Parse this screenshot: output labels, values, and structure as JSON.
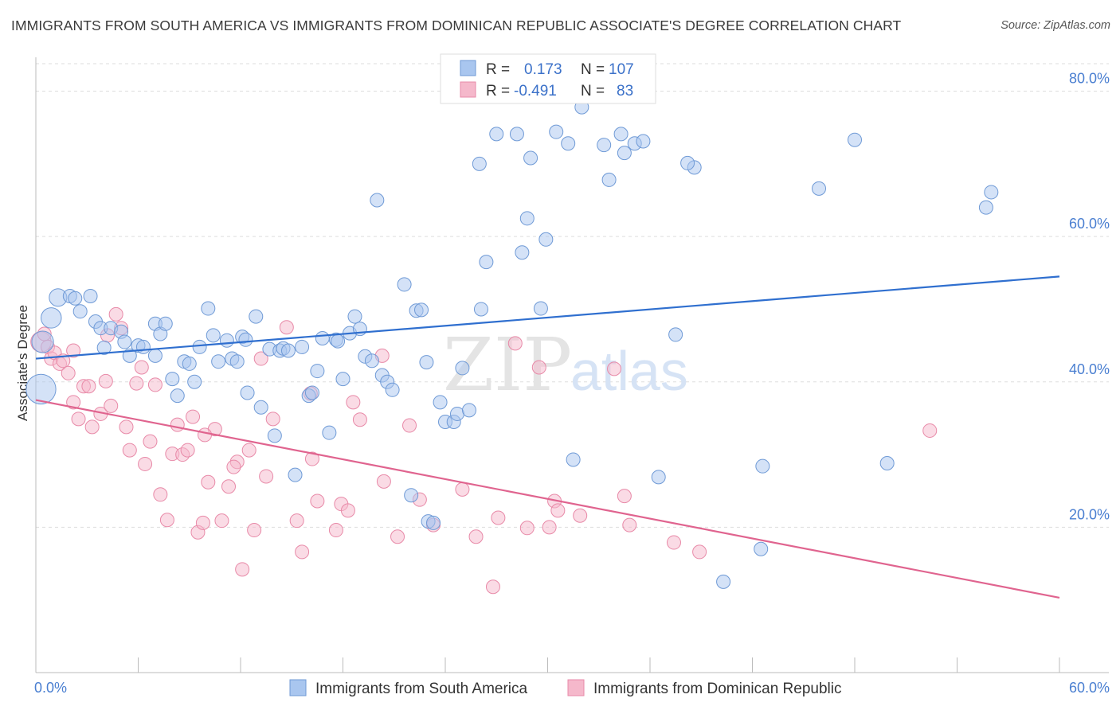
{
  "title": "IMMIGRANTS FROM SOUTH AMERICA VS IMMIGRANTS FROM DOMINICAN REPUBLIC ASSOCIATE'S DEGREE CORRELATION CHART",
  "source": "Source: ZipAtlas.com",
  "watermark": {
    "zip": "ZIP",
    "atlas": "atlas"
  },
  "legend_top": {
    "rows": [
      {
        "r_label": "R =",
        "r_value": "0.173",
        "n_label": "N =",
        "n_value": "107"
      },
      {
        "r_label": "R =",
        "r_value": "-0.491",
        "n_label": "N =",
        "n_value": "83"
      }
    ]
  },
  "legend_bottom": [
    {
      "label": "Immigrants from South America"
    },
    {
      "label": "Immigrants from Dominican Republic"
    }
  ],
  "colors": {
    "blue_fill": "#a9c6ef",
    "blue_stroke": "#6f9ad6",
    "blue_line": "#2f6fcf",
    "pink_fill": "#f5b8cb",
    "pink_stroke": "#e88aa8",
    "pink_line": "#e0648f",
    "grid": "#dddddd",
    "tick_text": "#4a7fd1"
  },
  "chart_data": {
    "type": "scatter",
    "title": "IMMIGRANTS FROM SOUTH AMERICA VS IMMIGRANTS FROM DOMINICAN REPUBLIC ASSOCIATE'S DEGREE CORRELATION CHART",
    "xlabel": "",
    "ylabel": "Associate's Degree",
    "xlim": [
      0,
      60
    ],
    "ylim": [
      0,
      84
    ],
    "x_tick_labels": [
      "0.0%",
      "60.0%"
    ],
    "y_ticks": [
      {
        "value": 20,
        "label": "20.0%"
      },
      {
        "value": 40,
        "label": "40.0%"
      },
      {
        "value": 60,
        "label": "60.0%"
      },
      {
        "value": 80,
        "label": "80.0%"
      }
    ],
    "grid": true,
    "legend_position": "top-center",
    "series": [
      {
        "name": "Immigrants from South America",
        "color": "#a9c6ef",
        "r": 0.173,
        "n": 107,
        "trend": {
          "x": [
            0,
            60
          ],
          "y": [
            43.2,
            54.5
          ]
        },
        "points": [
          {
            "x": 0.3,
            "y": 39.0,
            "s": 2.2
          },
          {
            "x": 0.4,
            "y": 45.5,
            "s": 1.6
          },
          {
            "x": 0.9,
            "y": 48.8,
            "s": 1.5
          },
          {
            "x": 1.3,
            "y": 51.6,
            "s": 1.3
          },
          {
            "x": 2.0,
            "y": 51.8
          },
          {
            "x": 2.3,
            "y": 51.5
          },
          {
            "x": 3.2,
            "y": 51.8
          },
          {
            "x": 2.6,
            "y": 49.7
          },
          {
            "x": 3.5,
            "y": 48.3
          },
          {
            "x": 3.8,
            "y": 47.4
          },
          {
            "x": 4.4,
            "y": 47.4
          },
          {
            "x": 5.0,
            "y": 46.9
          },
          {
            "x": 4.0,
            "y": 44.7
          },
          {
            "x": 5.2,
            "y": 45.5
          },
          {
            "x": 5.5,
            "y": 43.6
          },
          {
            "x": 6.0,
            "y": 45.0
          },
          {
            "x": 6.3,
            "y": 44.8
          },
          {
            "x": 7.0,
            "y": 48.0
          },
          {
            "x": 7.3,
            "y": 46.6
          },
          {
            "x": 7.6,
            "y": 48.0
          },
          {
            "x": 7.0,
            "y": 43.6
          },
          {
            "x": 8.0,
            "y": 40.4
          },
          {
            "x": 8.3,
            "y": 38.1
          },
          {
            "x": 8.7,
            "y": 42.8
          },
          {
            "x": 9.0,
            "y": 42.5
          },
          {
            "x": 9.3,
            "y": 40.0
          },
          {
            "x": 9.6,
            "y": 44.8
          },
          {
            "x": 10.1,
            "y": 50.1
          },
          {
            "x": 10.4,
            "y": 46.4
          },
          {
            "x": 10.7,
            "y": 42.8
          },
          {
            "x": 11.2,
            "y": 45.7
          },
          {
            "x": 11.5,
            "y": 43.2
          },
          {
            "x": 11.8,
            "y": 42.8
          },
          {
            "x": 12.1,
            "y": 46.2
          },
          {
            "x": 12.4,
            "y": 38.5
          },
          {
            "x": 12.9,
            "y": 49.0
          },
          {
            "x": 13.2,
            "y": 36.5
          },
          {
            "x": 13.7,
            "y": 44.5
          },
          {
            "x": 14.0,
            "y": 32.6
          },
          {
            "x": 14.3,
            "y": 44.3
          },
          {
            "x": 14.5,
            "y": 44.6
          },
          {
            "x": 14.8,
            "y": 44.3
          },
          {
            "x": 15.2,
            "y": 27.2
          },
          {
            "x": 15.6,
            "y": 44.8
          },
          {
            "x": 16.0,
            "y": 38.1
          },
          {
            "x": 16.2,
            "y": 38.5
          },
          {
            "x": 16.5,
            "y": 41.5
          },
          {
            "x": 16.8,
            "y": 46.0
          },
          {
            "x": 17.2,
            "y": 33.0
          },
          {
            "x": 17.6,
            "y": 45.8
          },
          {
            "x": 18.0,
            "y": 40.4
          },
          {
            "x": 18.4,
            "y": 46.7
          },
          {
            "x": 18.7,
            "y": 49.0
          },
          {
            "x": 19.0,
            "y": 47.3
          },
          {
            "x": 19.3,
            "y": 43.5
          },
          {
            "x": 19.7,
            "y": 42.9
          },
          {
            "x": 20.3,
            "y": 40.9
          },
          {
            "x": 20.6,
            "y": 40.0
          },
          {
            "x": 20.9,
            "y": 38.9
          },
          {
            "x": 21.6,
            "y": 53.4
          },
          {
            "x": 22.3,
            "y": 49.8
          },
          {
            "x": 22.6,
            "y": 49.9
          },
          {
            "x": 23.0,
            "y": 20.8
          },
          {
            "x": 22.0,
            "y": 24.4
          },
          {
            "x": 23.3,
            "y": 20.6
          },
          {
            "x": 22.9,
            "y": 42.7
          },
          {
            "x": 23.7,
            "y": 37.2
          },
          {
            "x": 24.0,
            "y": 34.5
          },
          {
            "x": 24.5,
            "y": 34.5
          },
          {
            "x": 24.7,
            "y": 35.6
          },
          {
            "x": 25.0,
            "y": 41.9
          },
          {
            "x": 25.4,
            "y": 36.1
          },
          {
            "x": 26.1,
            "y": 50.0
          },
          {
            "x": 26.4,
            "y": 56.5
          },
          {
            "x": 26.0,
            "y": 70.0
          },
          {
            "x": 20.0,
            "y": 65.0
          },
          {
            "x": 27.0,
            "y": 74.1
          },
          {
            "x": 28.2,
            "y": 74.1
          },
          {
            "x": 28.5,
            "y": 57.8
          },
          {
            "x": 28.8,
            "y": 62.5
          },
          {
            "x": 29.0,
            "y": 70.8
          },
          {
            "x": 29.6,
            "y": 50.1
          },
          {
            "x": 29.9,
            "y": 59.6
          },
          {
            "x": 30.5,
            "y": 74.4
          },
          {
            "x": 31.2,
            "y": 72.8
          },
          {
            "x": 32.0,
            "y": 77.8
          },
          {
            "x": 33.3,
            "y": 72.6
          },
          {
            "x": 33.6,
            "y": 67.8
          },
          {
            "x": 34.3,
            "y": 74.1
          },
          {
            "x": 34.5,
            "y": 71.5
          },
          {
            "x": 35.1,
            "y": 72.8
          },
          {
            "x": 35.6,
            "y": 73.1
          },
          {
            "x": 31.5,
            "y": 29.3
          },
          {
            "x": 36.5,
            "y": 26.9
          },
          {
            "x": 37.5,
            "y": 46.5
          },
          {
            "x": 38.6,
            "y": 69.5
          },
          {
            "x": 42.5,
            "y": 17.0
          },
          {
            "x": 42.6,
            "y": 28.4
          },
          {
            "x": 45.9,
            "y": 66.6
          },
          {
            "x": 48.0,
            "y": 73.3
          },
          {
            "x": 49.9,
            "y": 28.8
          },
          {
            "x": 55.7,
            "y": 64.0
          },
          {
            "x": 56.0,
            "y": 66.1
          },
          {
            "x": 38.2,
            "y": 70.1
          },
          {
            "x": 40.3,
            "y": 12.5
          },
          {
            "x": 17.7,
            "y": 45.6
          },
          {
            "x": 12.3,
            "y": 45.8
          }
        ]
      },
      {
        "name": "Immigrants from Dominican Republic",
        "color": "#f5b8cb",
        "r": -0.491,
        "n": 83,
        "trend": {
          "x": [
            0,
            60
          ],
          "y": [
            37.5,
            10.3
          ]
        },
        "points": [
          {
            "x": 0.3,
            "y": 45.5,
            "s": 1.5
          },
          {
            "x": 0.5,
            "y": 46.6
          },
          {
            "x": 0.7,
            "y": 44.8
          },
          {
            "x": 0.9,
            "y": 43.2
          },
          {
            "x": 1.1,
            "y": 44.0
          },
          {
            "x": 1.4,
            "y": 42.5
          },
          {
            "x": 1.6,
            "y": 42.9
          },
          {
            "x": 1.9,
            "y": 41.2
          },
          {
            "x": 2.2,
            "y": 37.2
          },
          {
            "x": 2.5,
            "y": 34.9
          },
          {
            "x": 2.8,
            "y": 39.4
          },
          {
            "x": 3.1,
            "y": 39.4
          },
          {
            "x": 3.3,
            "y": 33.8
          },
          {
            "x": 3.8,
            "y": 35.6
          },
          {
            "x": 4.1,
            "y": 40.1
          },
          {
            "x": 4.4,
            "y": 36.7
          },
          {
            "x": 4.7,
            "y": 49.3
          },
          {
            "x": 5.0,
            "y": 47.4
          },
          {
            "x": 5.3,
            "y": 33.8
          },
          {
            "x": 5.5,
            "y": 30.6
          },
          {
            "x": 5.9,
            "y": 39.8
          },
          {
            "x": 6.2,
            "y": 42.0
          },
          {
            "x": 6.4,
            "y": 28.7
          },
          {
            "x": 6.7,
            "y": 31.8
          },
          {
            "x": 7.0,
            "y": 39.6
          },
          {
            "x": 7.3,
            "y": 24.5
          },
          {
            "x": 7.7,
            "y": 21.0
          },
          {
            "x": 8.0,
            "y": 30.1
          },
          {
            "x": 8.3,
            "y": 34.1
          },
          {
            "x": 8.6,
            "y": 30.0
          },
          {
            "x": 8.9,
            "y": 30.6
          },
          {
            "x": 9.2,
            "y": 35.2
          },
          {
            "x": 9.5,
            "y": 19.3
          },
          {
            "x": 9.8,
            "y": 20.6
          },
          {
            "x": 10.1,
            "y": 26.2
          },
          {
            "x": 10.5,
            "y": 33.5
          },
          {
            "x": 10.9,
            "y": 20.9
          },
          {
            "x": 11.3,
            "y": 25.6
          },
          {
            "x": 11.8,
            "y": 29.0
          },
          {
            "x": 11.6,
            "y": 28.3
          },
          {
            "x": 12.1,
            "y": 14.2
          },
          {
            "x": 12.5,
            "y": 30.6
          },
          {
            "x": 12.8,
            "y": 19.6
          },
          {
            "x": 13.2,
            "y": 43.2
          },
          {
            "x": 13.5,
            "y": 27.0
          },
          {
            "x": 13.9,
            "y": 34.9
          },
          {
            "x": 14.7,
            "y": 47.5
          },
          {
            "x": 15.3,
            "y": 20.9
          },
          {
            "x": 15.6,
            "y": 16.6
          },
          {
            "x": 16.2,
            "y": 29.4
          },
          {
            "x": 16.5,
            "y": 23.6
          },
          {
            "x": 17.6,
            "y": 19.6
          },
          {
            "x": 17.9,
            "y": 23.2
          },
          {
            "x": 18.3,
            "y": 22.3
          },
          {
            "x": 18.6,
            "y": 37.2
          },
          {
            "x": 19.0,
            "y": 34.8
          },
          {
            "x": 20.4,
            "y": 26.3
          },
          {
            "x": 20.3,
            "y": 43.6
          },
          {
            "x": 21.2,
            "y": 18.7
          },
          {
            "x": 21.9,
            "y": 34.0
          },
          {
            "x": 22.5,
            "y": 23.8
          },
          {
            "x": 23.3,
            "y": 20.3
          },
          {
            "x": 25.0,
            "y": 25.2
          },
          {
            "x": 25.8,
            "y": 18.7
          },
          {
            "x": 26.8,
            "y": 11.8
          },
          {
            "x": 27.1,
            "y": 21.3
          },
          {
            "x": 28.1,
            "y": 45.3
          },
          {
            "x": 28.8,
            "y": 19.9
          },
          {
            "x": 29.5,
            "y": 42.0
          },
          {
            "x": 30.1,
            "y": 20.0
          },
          {
            "x": 30.4,
            "y": 23.6
          },
          {
            "x": 30.6,
            "y": 22.3
          },
          {
            "x": 31.9,
            "y": 21.6
          },
          {
            "x": 33.9,
            "y": 41.8
          },
          {
            "x": 34.5,
            "y": 24.3
          },
          {
            "x": 34.8,
            "y": 20.3
          },
          {
            "x": 37.4,
            "y": 17.9
          },
          {
            "x": 38.9,
            "y": 16.6
          },
          {
            "x": 52.4,
            "y": 33.3
          },
          {
            "x": 2.2,
            "y": 44.3
          },
          {
            "x": 9.9,
            "y": 32.7
          },
          {
            "x": 4.2,
            "y": 46.4
          },
          {
            "x": 16.1,
            "y": 38.4
          }
        ]
      }
    ]
  }
}
